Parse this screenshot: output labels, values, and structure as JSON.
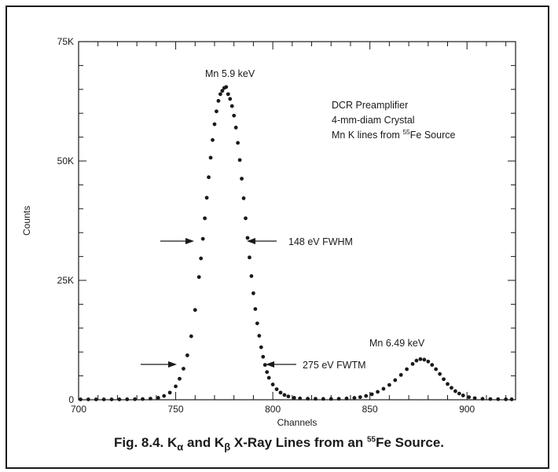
{
  "chart_data": {
    "type": "scatter",
    "xlabel": "Channels",
    "ylabel": "Counts",
    "xlim": [
      700,
      925
    ],
    "ylim": [
      0,
      75000
    ],
    "x_ticks": [
      700,
      750,
      800,
      850,
      900
    ],
    "x_tick_labels": [
      "700",
      "750",
      "800",
      "850",
      "900"
    ],
    "y_ticks": [
      0,
      25000,
      50000,
      75000
    ],
    "y_tick_labels": [
      "0",
      "25K",
      "50K",
      "75K"
    ],
    "grid": false,
    "legend": "none",
    "series": [
      {
        "points": [
          [
            701,
            80
          ],
          [
            705,
            80
          ],
          [
            709,
            80
          ],
          [
            713,
            80
          ],
          [
            717,
            80
          ],
          [
            721,
            80
          ],
          [
            725,
            90
          ],
          [
            729,
            110
          ],
          [
            733,
            150
          ],
          [
            737,
            230
          ],
          [
            741,
            400
          ],
          [
            744,
            800
          ],
          [
            747,
            1500
          ],
          [
            750,
            2800
          ],
          [
            752,
            4400
          ],
          [
            754,
            6500
          ],
          [
            756,
            9300
          ],
          [
            758,
            13300
          ],
          [
            760,
            18800
          ],
          [
            762,
            25700
          ],
          [
            763,
            29600
          ],
          [
            764,
            33700
          ],
          [
            765,
            38000
          ],
          [
            766,
            42300
          ],
          [
            767,
            46600
          ],
          [
            768,
            50700
          ],
          [
            769,
            54400
          ],
          [
            770,
            57700
          ],
          [
            771,
            60400
          ],
          [
            772,
            62600
          ],
          [
            773,
            64000
          ],
          [
            774,
            64700
          ],
          [
            775,
            65300
          ],
          [
            776,
            65500
          ],
          [
            777,
            64000
          ],
          [
            778,
            63000
          ],
          [
            779,
            61500
          ],
          [
            780,
            59500
          ],
          [
            781,
            57000
          ],
          [
            782,
            53800
          ],
          [
            783,
            50200
          ],
          [
            784,
            46300
          ],
          [
            785,
            42200
          ],
          [
            786,
            38000
          ],
          [
            787,
            33900
          ],
          [
            788,
            29800
          ],
          [
            789,
            25900
          ],
          [
            790,
            22300
          ],
          [
            791,
            19000
          ],
          [
            792,
            16000
          ],
          [
            793,
            13400
          ],
          [
            794,
            11000
          ],
          [
            795,
            9000
          ],
          [
            796,
            7300
          ],
          [
            797,
            5800
          ],
          [
            798,
            4600
          ],
          [
            800,
            3200
          ],
          [
            802,
            2200
          ],
          [
            804,
            1500
          ],
          [
            806,
            1000
          ],
          [
            808,
            700
          ],
          [
            811,
            400
          ],
          [
            814,
            280
          ],
          [
            818,
            220
          ],
          [
            822,
            200
          ],
          [
            826,
            180
          ],
          [
            830,
            180
          ],
          [
            834,
            200
          ],
          [
            838,
            260
          ],
          [
            842,
            380
          ],
          [
            845,
            550
          ],
          [
            848,
            800
          ],
          [
            851,
            1150
          ],
          [
            854,
            1650
          ],
          [
            857,
            2300
          ],
          [
            860,
            3100
          ],
          [
            863,
            4100
          ],
          [
            866,
            5200
          ],
          [
            869,
            6400
          ],
          [
            872,
            7500
          ],
          [
            874,
            8200
          ],
          [
            876,
            8500
          ],
          [
            878,
            8400
          ],
          [
            880,
            8000
          ],
          [
            882,
            7300
          ],
          [
            884,
            6400
          ],
          [
            886,
            5400
          ],
          [
            888,
            4300
          ],
          [
            890,
            3300
          ],
          [
            892,
            2500
          ],
          [
            894,
            1800
          ],
          [
            896,
            1300
          ],
          [
            898,
            900
          ],
          [
            901,
            550
          ],
          [
            904,
            330
          ],
          [
            908,
            200
          ],
          [
            912,
            150
          ],
          [
            916,
            120
          ],
          [
            920,
            100
          ],
          [
            923,
            90
          ]
        ]
      }
    ],
    "annotations": [
      {
        "text": "Mn 5.9 keV"
      },
      {
        "text": "Mn 6.49 keV"
      },
      {
        "text": "148 eV FWHM"
      },
      {
        "text": "275 eV FWTM"
      }
    ],
    "info_lines": [
      "DCR Preamplifier",
      "4-mm-diam Crystal",
      "Mn K lines from ",
      "55",
      "Fe Source"
    ],
    "dot_color": "#1a1a1a",
    "ink_color": "#1a1a1a"
  },
  "caption": {
    "prefix": "Fig. 8.4.  K",
    "sub_alpha": "α",
    "and_k": " and K",
    "sub_beta": "β",
    "middle": " X-Ray Lines from an ",
    "isotope_mass": "55",
    "suffix": "Fe Source."
  }
}
